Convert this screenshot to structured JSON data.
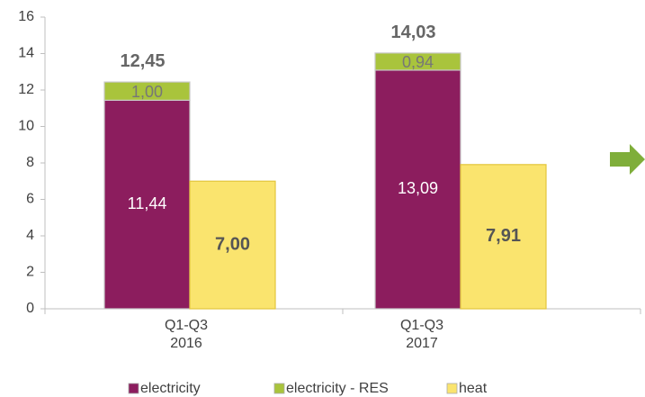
{
  "chart_data": {
    "type": "bar",
    "categories": [
      "Q1-Q3\n2016",
      "Q1-Q3\n2017"
    ],
    "series": [
      {
        "name": "electricity",
        "color": "#8c1d5e",
        "stack": "a",
        "label_color": "#ffffff",
        "values": [
          11.44,
          13.09
        ],
        "value_labels": [
          "11,44",
          "13,09"
        ]
      },
      {
        "name": "electricity - RES",
        "color": "#a9c43c",
        "stack": "a",
        "label_color": "#777777",
        "values": [
          1.0,
          0.94
        ],
        "value_labels": [
          "1,00",
          "0,94"
        ]
      },
      {
        "name": "heat",
        "color": "#fae46e",
        "stack": "b",
        "label_color": "#555555",
        "label_bold": true,
        "values": [
          7.0,
          7.91
        ],
        "value_labels": [
          "7,00",
          "7,91"
        ]
      }
    ],
    "totals": [
      12.45,
      14.03
    ],
    "total_labels": [
      "12,45",
      "14,03"
    ],
    "ylim": [
      0,
      16
    ],
    "yticks": [
      0,
      2,
      4,
      6,
      8,
      10,
      12,
      14,
      16
    ],
    "grid": false,
    "legend": "bottom"
  }
}
